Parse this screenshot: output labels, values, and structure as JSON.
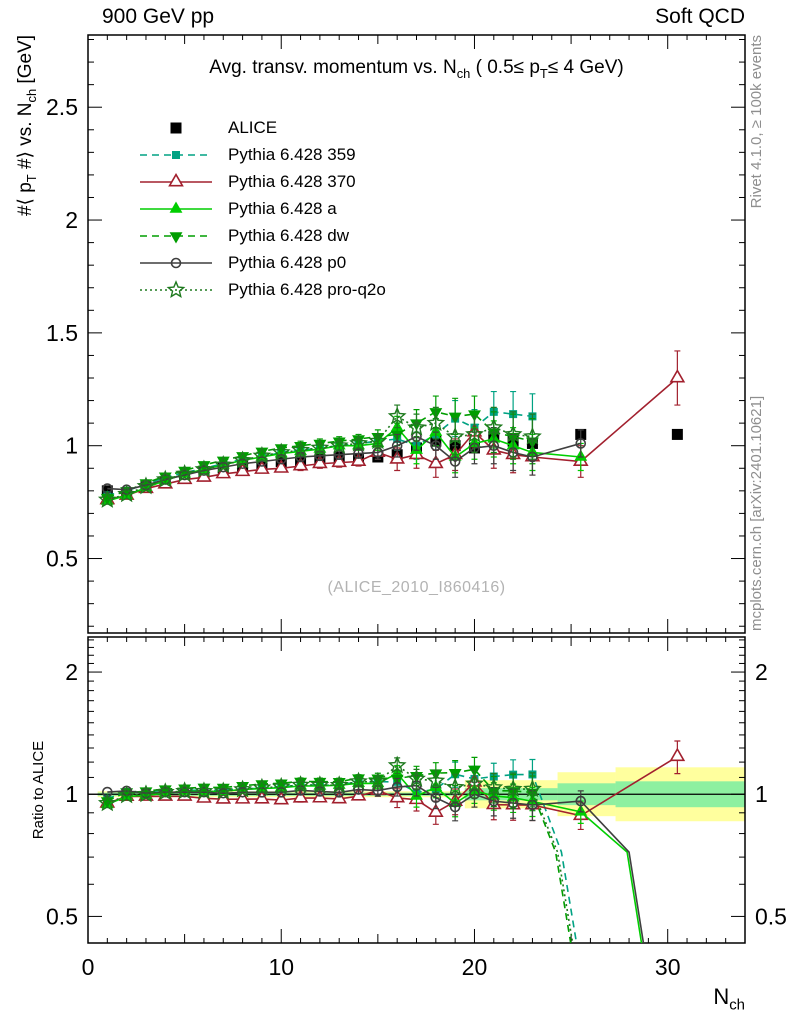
{
  "header": {
    "left": "900 GeV pp",
    "right": "Soft QCD"
  },
  "side_notes": {
    "top_right": "Rivet 4.1.0, ≥ 100k events",
    "bottom_right": "mcplots.cern.ch [arXiv:2401.10621]"
  },
  "watermark": "(ALICE_2010_I860416)",
  "chart_data": {
    "type": "line",
    "title": "Avg. transv. momentum vs. N_ch ( 0.5≤ p_T≤ 4 GeV)",
    "title_parts": [
      {
        "t": "Avg. transv. momentum vs. N"
      },
      {
        "s": "ch"
      },
      {
        "t": " ( 0.5≤ p"
      },
      {
        "s": "T"
      },
      {
        "t": "≤ 4 GeV)"
      }
    ],
    "xlabel": "N_ch",
    "xlabel_parts": [
      {
        "t": "N"
      },
      {
        "s": "ch"
      }
    ],
    "ylabel": "#⟨ p_T #⟩ vs. N_ch [GeV]",
    "ylabel_parts": [
      {
        "t": "#⟨ p"
      },
      {
        "s": "T"
      },
      {
        "t": " #⟩ vs. N"
      },
      {
        "s": "ch"
      },
      {
        "t": " [GeV]"
      }
    ],
    "ratio_label": "Ratio to ALICE",
    "legend_position": "top-left",
    "grid": false,
    "x_range": [
      0,
      34
    ],
    "main_y_range": [
      0.17,
      2.82
    ],
    "ratio_y_range": [
      0.43,
      2.44
    ],
    "ratio_scale": "log",
    "axes": {
      "x": {
        "ticks": [
          {
            "v": 0,
            "label": "0"
          },
          {
            "v": 10,
            "label": "10"
          },
          {
            "v": 20,
            "label": "20"
          },
          {
            "v": 30,
            "label": "30"
          }
        ]
      },
      "main_y": {
        "ticks": [
          {
            "v": 0.5,
            "label": "0.5"
          },
          {
            "v": 1,
            "label": "1"
          },
          {
            "v": 1.5,
            "label": "1.5"
          },
          {
            "v": 2,
            "label": "2"
          },
          {
            "v": 2.5,
            "label": "2.5"
          }
        ]
      },
      "ratio_y": {
        "ticks": [
          {
            "v": 0.5,
            "label": "0.5"
          },
          {
            "v": 1,
            "label": "1"
          },
          {
            "v": 2,
            "label": "2"
          }
        ]
      }
    },
    "band_colors": {
      "outer": "#ffff9e",
      "inner": "#8ef0a0"
    },
    "ratio_bands": [
      {
        "x0": 0.5,
        "x1": 19.5,
        "outer": [
          0.983,
          1.017
        ],
        "inner": [
          0.991,
          1.009
        ]
      },
      {
        "x0": 19.5,
        "x1": 24.3,
        "outer": [
          0.923,
          1.083
        ],
        "inner": [
          0.966,
          1.035
        ]
      },
      {
        "x0": 24.3,
        "x1": 27.3,
        "outer": [
          0.883,
          1.133
        ],
        "inner": [
          0.94,
          1.064
        ]
      },
      {
        "x0": 27.3,
        "x1": 34.0,
        "outer": [
          0.858,
          1.165
        ],
        "inner": [
          0.929,
          1.076
        ]
      }
    ],
    "reference": {
      "id": "alice",
      "name": "ALICE",
      "color": "#000000",
      "marker": "square",
      "fill": true,
      "size": 11,
      "x": [
        1,
        2,
        3,
        4,
        5,
        6,
        7,
        8,
        9,
        10,
        11,
        12,
        13,
        14,
        15,
        16,
        17,
        18,
        19,
        20,
        21,
        22,
        23,
        25.5,
        30.5
      ],
      "y": [
        0.8,
        0.79,
        0.82,
        0.84,
        0.86,
        0.88,
        0.9,
        0.91,
        0.92,
        0.93,
        0.93,
        0.94,
        0.95,
        0.94,
        0.95,
        0.96,
        0.99,
        1.02,
        1.0,
        0.99,
        1.04,
        1.02,
        1.01,
        1.05,
        1.05
      ]
    },
    "series": [
      {
        "id": "py359",
        "name": "Pythia 6.428 359",
        "color": "#00a283",
        "dash": "7,5",
        "marker": "square",
        "fill": true,
        "size": 8,
        "x": [
          1,
          2,
          3,
          4,
          5,
          6,
          7,
          8,
          9,
          10,
          11,
          12,
          13,
          14,
          15,
          16,
          17,
          18,
          19,
          20,
          21,
          22,
          23
        ],
        "y": [
          0.78,
          0.8,
          0.83,
          0.86,
          0.88,
          0.9,
          0.92,
          0.94,
          0.95,
          0.97,
          0.98,
          0.99,
          1.0,
          1.01,
          1.02,
          1.03,
          1.0,
          1.05,
          1.12,
          1.08,
          1.15,
          1.14,
          1.13
        ],
        "err": [
          0.01,
          0.01,
          0.01,
          0.01,
          0.01,
          0.01,
          0.01,
          0.01,
          0.01,
          0.01,
          0.02,
          0.02,
          0.02,
          0.02,
          0.03,
          0.05,
          0.06,
          0.07,
          0.08,
          0.08,
          0.09,
          0.1,
          0.1
        ],
        "ratio_drop": [
          [
            23,
            1.12
          ],
          [
            24.5,
            0.72
          ],
          [
            25.55,
            0.36
          ]
        ]
      },
      {
        "id": "py370",
        "name": "Pythia 6.428 370",
        "color": "#a2202e",
        "dash": null,
        "marker": "triangle-up",
        "fill": false,
        "size": 12,
        "x": [
          1,
          2,
          3,
          4,
          5,
          6,
          7,
          8,
          9,
          10,
          11,
          12,
          13,
          14,
          15,
          16,
          17,
          18,
          19,
          20,
          21,
          22,
          23,
          25.5,
          30.5
        ],
        "y": [
          0.76,
          0.78,
          0.81,
          0.83,
          0.85,
          0.86,
          0.875,
          0.885,
          0.895,
          0.9,
          0.91,
          0.92,
          0.925,
          0.93,
          0.97,
          0.94,
          0.96,
          0.92,
          0.96,
          1.06,
          0.98,
          0.96,
          0.95,
          0.93,
          1.3
        ],
        "err": [
          0.01,
          0.01,
          0.01,
          0.01,
          0.01,
          0.01,
          0.01,
          0.01,
          0.01,
          0.01,
          0.02,
          0.02,
          0.02,
          0.02,
          0.03,
          0.05,
          0.06,
          0.06,
          0.07,
          0.07,
          0.08,
          0.08,
          0.08,
          0.07,
          0.12
        ],
        "ratio_drop": null
      },
      {
        "id": "pya",
        "name": "Pythia 6.428 a",
        "color": "#00ce00",
        "dash": null,
        "marker": "triangle-up",
        "fill": true,
        "size": 12,
        "x": [
          1,
          2,
          3,
          4,
          5,
          6,
          7,
          8,
          9,
          10,
          11,
          12,
          13,
          14,
          15,
          16,
          17,
          18,
          19,
          20,
          21,
          22,
          23,
          25.5
        ],
        "y": [
          0.755,
          0.78,
          0.815,
          0.845,
          0.875,
          0.895,
          0.915,
          0.935,
          0.95,
          0.965,
          0.975,
          0.985,
          1.0,
          1.0,
          1.01,
          1.08,
          0.98,
          1.06,
          0.95,
          1.01,
          1.03,
          1.0,
          0.97,
          0.95
        ],
        "err": [
          0.01,
          0.01,
          0.01,
          0.01,
          0.01,
          0.01,
          0.01,
          0.01,
          0.01,
          0.01,
          0.02,
          0.02,
          0.02,
          0.02,
          0.03,
          0.05,
          0.06,
          0.06,
          0.07,
          0.07,
          0.08,
          0.08,
          0.08,
          0.06
        ],
        "ratio_drop": [
          [
            25.5,
            0.9
          ],
          [
            27.9,
            0.72
          ],
          [
            28.9,
            0.36
          ]
        ]
      },
      {
        "id": "pydw",
        "name": "Pythia 6.428 dw",
        "color": "#009d00",
        "dash": "7,5",
        "marker": "triangle-down",
        "fill": true,
        "size": 12,
        "x": [
          1,
          2,
          3,
          4,
          5,
          6,
          7,
          8,
          9,
          10,
          11,
          12,
          13,
          14,
          15,
          16,
          17,
          18,
          19,
          20,
          21,
          22,
          23
        ],
        "y": [
          0.77,
          0.8,
          0.835,
          0.865,
          0.89,
          0.915,
          0.935,
          0.955,
          0.975,
          0.99,
          1.0,
          1.01,
          1.02,
          1.03,
          1.04,
          1.05,
          1.1,
          1.15,
          1.13,
          1.14,
          1.06,
          1.04,
          1.02
        ],
        "err": [
          0.01,
          0.01,
          0.01,
          0.01,
          0.01,
          0.01,
          0.01,
          0.01,
          0.01,
          0.01,
          0.02,
          0.02,
          0.02,
          0.02,
          0.03,
          0.05,
          0.06,
          0.07,
          0.08,
          0.08,
          0.09,
          0.1,
          0.1
        ],
        "ratio_drop": [
          [
            23,
            1.01
          ],
          [
            24.2,
            0.72
          ],
          [
            25.25,
            0.36
          ]
        ]
      },
      {
        "id": "pyp0",
        "name": "Pythia 6.428 p0",
        "color": "#3f3f3f",
        "dash": null,
        "marker": "circle",
        "fill": false,
        "size": 9,
        "x": [
          1,
          2,
          3,
          4,
          5,
          6,
          7,
          8,
          9,
          10,
          11,
          12,
          13,
          14,
          15,
          16,
          17,
          18,
          19,
          20,
          21,
          22,
          23,
          25.5
        ],
        "y": [
          0.81,
          0.805,
          0.825,
          0.85,
          0.87,
          0.89,
          0.905,
          0.92,
          0.93,
          0.94,
          0.95,
          0.955,
          0.96,
          0.965,
          0.97,
          1.0,
          1.04,
          1.0,
          0.93,
          0.99,
          1.0,
          0.97,
          0.95,
          1.01
        ],
        "err": [
          0.01,
          0.01,
          0.01,
          0.01,
          0.01,
          0.01,
          0.01,
          0.01,
          0.01,
          0.01,
          0.02,
          0.02,
          0.02,
          0.02,
          0.03,
          0.05,
          0.06,
          0.06,
          0.07,
          0.07,
          0.08,
          0.08,
          0.08,
          0.06
        ],
        "ratio_drop": [
          [
            25.5,
            0.96
          ],
          [
            28.0,
            0.72
          ],
          [
            29.0,
            0.36
          ]
        ]
      },
      {
        "id": "pyq2o",
        "name": "Pythia 6.428 pro-q2o",
        "color": "#1f7a1f",
        "dash": "2,3",
        "marker": "star",
        "fill": false,
        "size": 13,
        "x": [
          1,
          2,
          3,
          4,
          5,
          6,
          7,
          8,
          9,
          10,
          11,
          12,
          13,
          14,
          15,
          16,
          17,
          18,
          19,
          20,
          21,
          22,
          23
        ],
        "y": [
          0.76,
          0.785,
          0.82,
          0.85,
          0.875,
          0.895,
          0.915,
          0.935,
          0.955,
          0.97,
          0.98,
          0.99,
          1.0,
          1.01,
          1.02,
          1.13,
          1.08,
          1.1,
          1.04,
          1.05,
          1.08,
          1.05,
          1.04
        ],
        "err": [
          0.01,
          0.01,
          0.01,
          0.01,
          0.01,
          0.01,
          0.01,
          0.01,
          0.01,
          0.01,
          0.02,
          0.02,
          0.02,
          0.02,
          0.03,
          0.05,
          0.06,
          0.07,
          0.08,
          0.08,
          0.09,
          0.1,
          0.1
        ],
        "ratio_drop": [
          [
            23,
            1.03
          ],
          [
            24.3,
            0.72
          ],
          [
            25.35,
            0.36
          ]
        ]
      }
    ]
  }
}
